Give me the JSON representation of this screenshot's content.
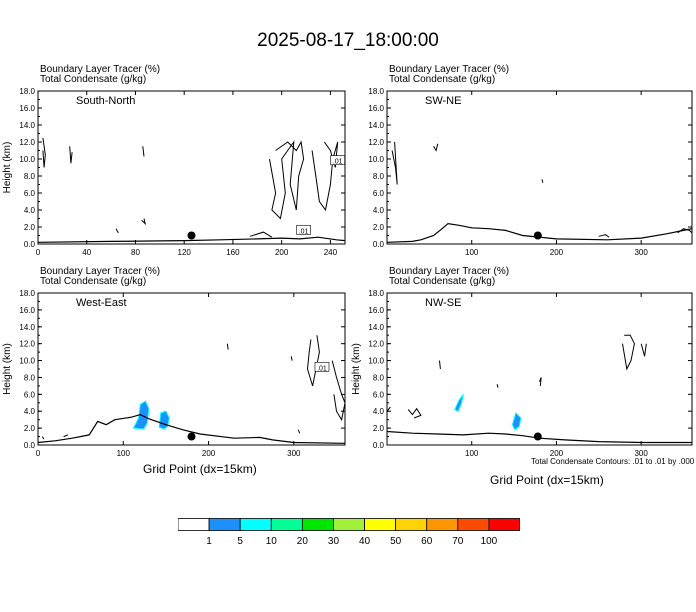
{
  "title": "2025-08-17_18:00:00",
  "panel_line1": "Boundary Layer Tracer   (%)",
  "panel_line2": "Total Condensate   (g/kg)",
  "xlabel": "Grid Point (dx=15km)",
  "footnote": "Total Condensate Contours: .01 to .01 by .000",
  "colorbar": {
    "labels": [
      "1",
      "5",
      "10",
      "20",
      "30",
      "40",
      "50",
      "60",
      "70",
      "100"
    ],
    "colors": [
      "#ffffff",
      "#1e8fff",
      "#00ffff",
      "#00ff96",
      "#00e600",
      "#a0f03c",
      "#ffff00",
      "#ffd200",
      "#ff9600",
      "#ff4b00",
      "#ff0000"
    ]
  },
  "chart_data": [
    {
      "type": "contour",
      "label": "South-North",
      "ylabel": "Height (km)",
      "ylim": [
        0,
        18
      ],
      "yticks": [
        "0.0",
        "2.0",
        "4.0",
        "6.0",
        "8.0",
        "10.0",
        "12.0",
        "14.0",
        "16.0",
        "18.0"
      ],
      "xlim": [
        0,
        252
      ],
      "xticks": [
        "0",
        "40",
        "80",
        "120",
        "160",
        "200",
        "240"
      ],
      "marker": {
        "x": 126,
        "y": 1.0
      },
      "contour_labels": [
        {
          "x": 218,
          "y": 1.6,
          "text": ".01"
        },
        {
          "x": 246,
          "y": 9.8,
          "text": ".01"
        }
      ]
    },
    {
      "type": "contour",
      "label": "SW-NE",
      "ylabel": "",
      "ylim": [
        0,
        18
      ],
      "yticks": [
        "0.0",
        "2.0",
        "4.0",
        "6.0",
        "8.0",
        "10.0",
        "12.0",
        "14.0",
        "16.0",
        "18.0"
      ],
      "xlim": [
        0,
        360
      ],
      "xticks": [
        "100",
        "200",
        "300"
      ],
      "marker": {
        "x": 178,
        "y": 1.0
      },
      "contour_labels": []
    },
    {
      "type": "contour",
      "label": "West-East",
      "ylabel": "Height (km)",
      "ylim": [
        0,
        18
      ],
      "yticks": [
        "0.0",
        "2.0",
        "4.0",
        "6.0",
        "8.0",
        "10.0",
        "12.0",
        "14.0",
        "16.0",
        "18.0"
      ],
      "xlim": [
        0,
        360
      ],
      "xticks": [
        "0",
        "100",
        "200",
        "300"
      ],
      "marker": {
        "x": 180,
        "y": 1.0
      },
      "contour_labels": [
        {
          "x": 333,
          "y": 9.2,
          "text": ".01"
        }
      ]
    },
    {
      "type": "contour",
      "label": "NW-SE",
      "ylabel": "Height (km)",
      "ylim": [
        0,
        18
      ],
      "yticks": [
        "0.0",
        "2.0",
        "4.0",
        "6.0",
        "8.0",
        "10.0",
        "12.0",
        "14.0",
        "16.0",
        "18.0"
      ],
      "xlim": [
        0,
        360
      ],
      "xticks": [
        "100",
        "200",
        "300"
      ],
      "marker": {
        "x": 178,
        "y": 1.0
      },
      "contour_labels": []
    }
  ]
}
